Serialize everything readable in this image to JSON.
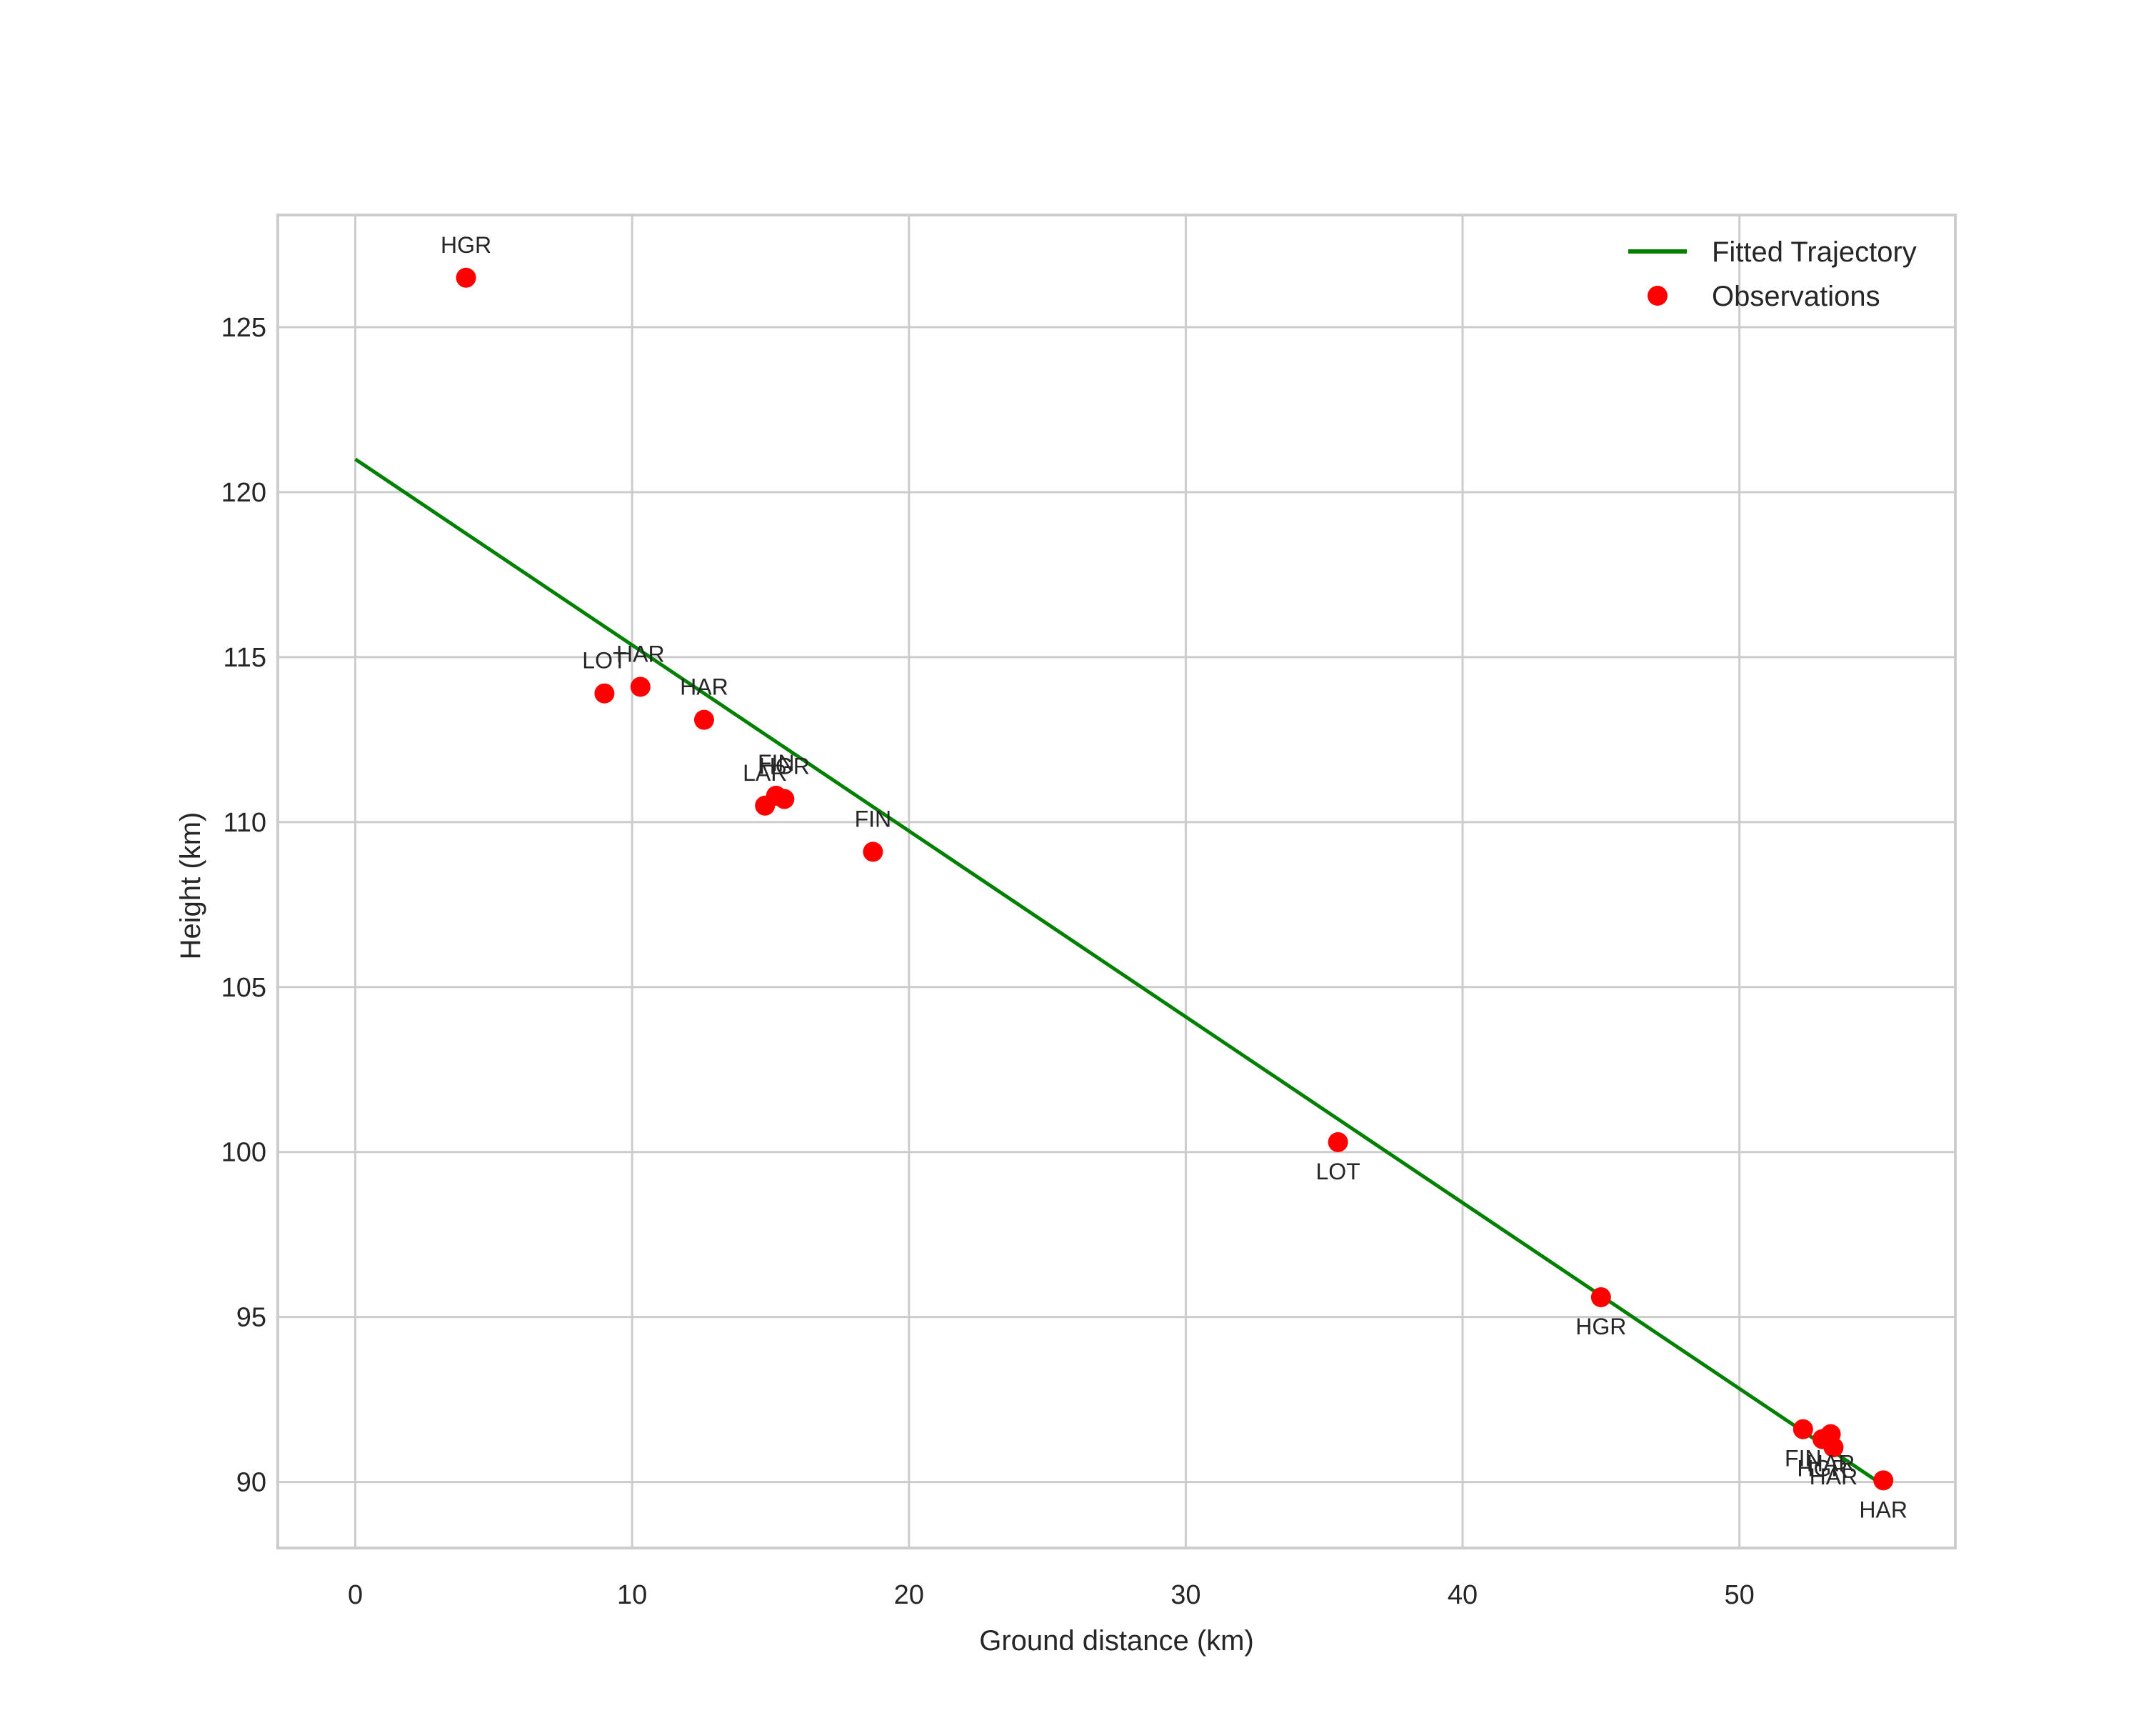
{
  "chart_data": {
    "type": "scatter",
    "title": "",
    "xlabel": "Ground distance (km)",
    "ylabel": "Height (km)",
    "xlim": [
      -2.8,
      57.8
    ],
    "ylim": [
      88.0,
      128.4
    ],
    "xticks": [
      0,
      10,
      20,
      30,
      40,
      50
    ],
    "yticks": [
      90,
      95,
      100,
      105,
      110,
      115,
      120,
      125
    ],
    "grid": true,
    "legend_position": "upper right",
    "series": [
      {
        "name": "Fitted Trajectory",
        "kind": "line",
        "color": "#008000",
        "x": [
          0.0,
          55.2
        ],
        "y": [
          121.0,
          89.9
        ]
      },
      {
        "name": "Observations",
        "kind": "scatter",
        "color": "#ff0000",
        "points": [
          {
            "x": 4.0,
            "y": 126.5,
            "label": "HGR",
            "label_pos": "above"
          },
          {
            "x": 9.0,
            "y": 113.9,
            "label": "LOT",
            "label_pos": "above"
          },
          {
            "x": 10.3,
            "y": 114.1,
            "label": "HAR",
            "label_pos": "above"
          },
          {
            "x": 12.6,
            "y": 113.1,
            "label": "HAR",
            "label_pos": "above"
          },
          {
            "x": 14.8,
            "y": 110.5,
            "label": "LAR",
            "label_pos": "above"
          },
          {
            "x": 15.2,
            "y": 110.8,
            "label": "FIN",
            "label_pos": "above"
          },
          {
            "x": 15.5,
            "y": 110.7,
            "label": "HGR",
            "label_pos": "above"
          },
          {
            "x": 18.7,
            "y": 109.1,
            "label": "FIN",
            "label_pos": "above"
          },
          {
            "x": 35.5,
            "y": 100.3,
            "label": "LOT",
            "label_pos": "below"
          },
          {
            "x": 45.0,
            "y": 95.6,
            "label": "HGR",
            "label_pos": "below"
          },
          {
            "x": 52.3,
            "y": 91.6,
            "label": "FIN",
            "label_pos": "below"
          },
          {
            "x": 53.0,
            "y": 91.3,
            "label": "HGR",
            "label_pos": "below"
          },
          {
            "x": 53.3,
            "y": 91.45,
            "label": "HAR",
            "label_pos": "below"
          },
          {
            "x": 53.4,
            "y": 91.05,
            "label": "HAR",
            "label_pos": "below"
          },
          {
            "x": 55.2,
            "y": 90.05,
            "label": "HAR",
            "label_pos": "below"
          }
        ]
      }
    ],
    "legend": [
      {
        "label": "Fitted Trajectory",
        "marker": "line",
        "color": "#008000"
      },
      {
        "label": "Observations",
        "marker": "circle",
        "color": "#ff0000"
      }
    ]
  },
  "style": {
    "grid_color": "#cccccc",
    "frame_color": "#cccccc",
    "text_color": "#262626"
  }
}
